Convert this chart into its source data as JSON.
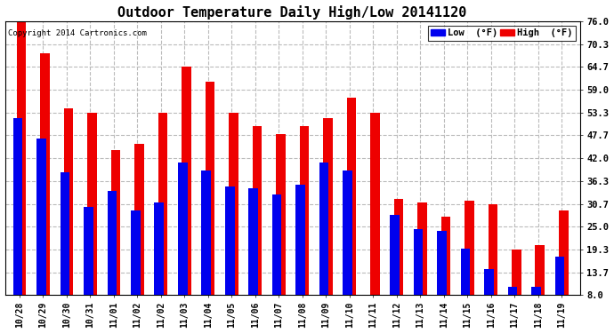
{
  "title": "Outdoor Temperature Daily High/Low 20141120",
  "copyright": "Copyright 2014 Cartronics.com",
  "dates": [
    "10/28",
    "10/29",
    "10/30",
    "10/31",
    "11/01",
    "11/02",
    "11/02",
    "11/03",
    "11/04",
    "11/05",
    "11/06",
    "11/07",
    "11/08",
    "11/09",
    "11/10",
    "11/11",
    "11/12",
    "11/13",
    "11/14",
    "11/15",
    "11/16",
    "11/17",
    "11/18",
    "11/19"
  ],
  "high": [
    76.0,
    68.0,
    54.5,
    53.3,
    44.0,
    45.5,
    53.3,
    64.7,
    61.0,
    53.3,
    50.0,
    48.0,
    50.0,
    52.0,
    57.0,
    53.3,
    32.0,
    31.0,
    27.5,
    31.5,
    30.7,
    19.3,
    20.5,
    29.0
  ],
  "low": [
    52.0,
    47.0,
    38.5,
    30.0,
    34.0,
    29.0,
    31.0,
    41.0,
    39.0,
    35.0,
    34.5,
    33.0,
    35.5,
    41.0,
    39.0,
    8.0,
    28.0,
    24.5,
    24.0,
    19.5,
    14.5,
    10.0,
    10.0,
    17.5
  ],
  "ylim_min": 8.0,
  "ylim_max": 76.0,
  "ytick_labels": [
    "76.0",
    "70.3",
    "64.7",
    "59.0",
    "53.3",
    "47.7",
    "42.0",
    "36.3",
    "30.7",
    "25.0",
    "19.3",
    "13.7",
    "8.0"
  ],
  "ytick_vals": [
    76.0,
    70.3,
    64.7,
    59.0,
    53.3,
    47.7,
    42.0,
    36.3,
    30.7,
    25.0,
    19.3,
    13.7,
    8.0
  ],
  "low_color": "#0000ee",
  "high_color": "#ee0000",
  "bg_color": "#ffffff",
  "plot_bg_color": "#ffffff",
  "grid_color": "#bbbbbb",
  "title_fontsize": 11,
  "legend_low_label": "Low  (°F)",
  "legend_high_label": "High  (°F)"
}
